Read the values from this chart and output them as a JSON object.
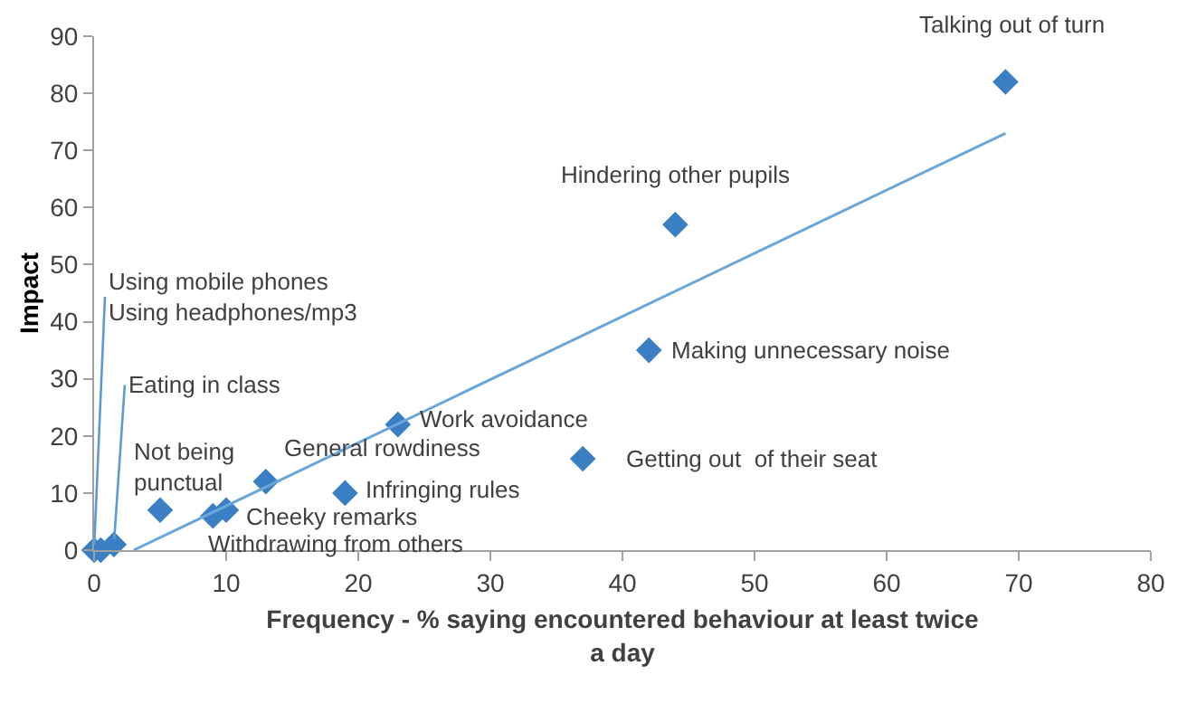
{
  "chart_data": {
    "type": "scatter",
    "xlabel": "Frequency - % saying encountered behaviour at least twice a day",
    "ylabel": "Impact",
    "xlim": [
      0,
      80
    ],
    "ylim": [
      0,
      90
    ],
    "xticks": [
      0,
      10,
      20,
      30,
      40,
      50,
      60,
      70,
      80
    ],
    "yticks": [
      0,
      10,
      20,
      30,
      40,
      50,
      60,
      70,
      80,
      90
    ],
    "marker": "diamond",
    "series": [
      {
        "color": "#3a7fc4",
        "x": [
          69,
          44,
          42,
          37,
          23,
          13,
          19,
          5,
          10,
          9,
          1.5,
          0,
          0.5
        ],
        "values": [
          82,
          57,
          35,
          16,
          22,
          12,
          10,
          7,
          7,
          6,
          1,
          0,
          0
        ]
      },
      {
        "type": "line",
        "marker": "none",
        "color": "#6aa6d8",
        "x": [
          3,
          69
        ],
        "values": [
          0,
          73
        ]
      }
    ],
    "annotations": [
      {
        "text": "Talking out of turn",
        "x": 69,
        "y": 82
      },
      {
        "text": "Hindering other pupils",
        "x": 44,
        "y": 57
      },
      {
        "text": "Making unnecessary noise",
        "x": 42,
        "y": 35
      },
      {
        "text": "Getting out  of their seat",
        "x": 37,
        "y": 16
      },
      {
        "text": "Work avoidance",
        "x": 23,
        "y": 22
      },
      {
        "text": "General rowdiness",
        "x": 13,
        "y": 12
      },
      {
        "text": "Infringing rules",
        "x": 19,
        "y": 10
      },
      {
        "text": "Not being\npunctual",
        "x": 5,
        "y": 7
      },
      {
        "text": "Cheeky remarks",
        "x": 10,
        "y": 7
      },
      {
        "text": "Withdrawing from others",
        "x": 9,
        "y": 6
      },
      {
        "text": "Eating in class",
        "x": 1.5,
        "y": 1
      },
      {
        "text": "Using mobile phones\nUsing headphones/mp3",
        "x": 0,
        "y": 0
      }
    ]
  }
}
